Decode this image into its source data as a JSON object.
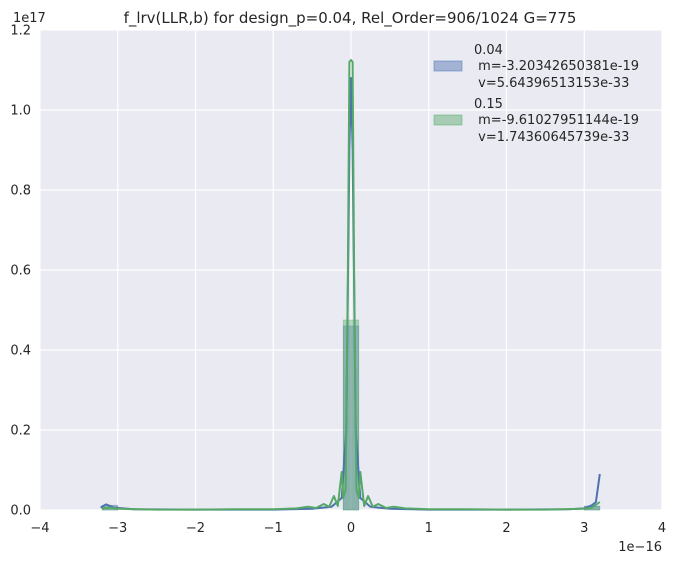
{
  "chart_data": {
    "type": "histogram+line",
    "title": "f_lrv(LLR,b) for design_p=0.04, Rel_Order=906/1024 G=775",
    "x_offset_label": "1e−16",
    "y_offset_label": "1e17",
    "xlim": [
      -4,
      4
    ],
    "ylim": [
      0,
      1.2
    ],
    "x_ticks": [
      -4,
      -3,
      -2,
      -1,
      0,
      1,
      2,
      3,
      4
    ],
    "x_tick_labels": [
      "−4",
      "−3",
      "−2",
      "−1",
      "0",
      "1",
      "2",
      "3",
      "4"
    ],
    "y_ticks": [
      0,
      0.2,
      0.4,
      0.6,
      0.8,
      1.0,
      1.2
    ],
    "y_tick_labels": [
      "0.0",
      "0.2",
      "0.4",
      "0.6",
      "0.8",
      "1.0",
      "1.2"
    ],
    "grid": true,
    "legend_position": "top-right",
    "colors": {
      "blue": "#4c72b0",
      "green": "#55a868",
      "background": "#eaeaf2",
      "grid": "#ffffff"
    },
    "series": [
      {
        "name": "0.04",
        "legend_lines": [
          "0.04",
          " m=-3.20342650381e-19",
          " v=5.64396513153e-33"
        ],
        "color": "#4c72b0",
        "hist": [
          {
            "x0": -3.2,
            "x1": -3.0,
            "y": 0.012
          },
          {
            "x0": -0.1,
            "x1": 0.1,
            "y": 0.46
          },
          {
            "x0": 3.0,
            "x1": 3.2,
            "y": 0.01
          }
        ],
        "line": [
          [
            -3.22,
            0.006
          ],
          [
            -3.15,
            0.014
          ],
          [
            -3.05,
            0.006
          ],
          [
            -2.8,
            0.002
          ],
          [
            -2.0,
            0.001
          ],
          [
            -1.0,
            0.001
          ],
          [
            -0.5,
            0.003
          ],
          [
            -0.25,
            0.008
          ],
          [
            -0.12,
            0.03
          ],
          [
            -0.06,
            0.2
          ],
          [
            -0.02,
            0.9
          ],
          [
            0.0,
            1.08
          ],
          [
            0.02,
            0.9
          ],
          [
            0.06,
            0.2
          ],
          [
            0.12,
            0.03
          ],
          [
            0.25,
            0.008
          ],
          [
            0.5,
            0.003
          ],
          [
            1.0,
            0.001
          ],
          [
            2.0,
            0.001
          ],
          [
            2.8,
            0.002
          ],
          [
            3.0,
            0.004
          ],
          [
            3.1,
            0.012
          ],
          [
            3.15,
            0.02
          ],
          [
            3.2,
            0.09
          ]
        ]
      },
      {
        "name": "0.15",
        "legend_lines": [
          "0.15",
          " m=-9.61027951144e-19",
          " v=1.74360645739e-33"
        ],
        "color": "#55a868",
        "hist": [
          {
            "x0": -3.2,
            "x1": -3.0,
            "y": 0.008
          },
          {
            "x0": -0.1,
            "x1": 0.1,
            "y": 0.475
          },
          {
            "x0": 3.0,
            "x1": 3.2,
            "y": 0.008
          }
        ],
        "line": [
          [
            -3.2,
            0.004
          ],
          [
            -3.1,
            0.006
          ],
          [
            -3.0,
            0.003
          ],
          [
            -2.5,
            0.001
          ],
          [
            -2.0,
            0.001
          ],
          [
            -1.5,
            0.002
          ],
          [
            -1.0,
            0.002
          ],
          [
            -0.7,
            0.004
          ],
          [
            -0.55,
            0.008
          ],
          [
            -0.45,
            0.005
          ],
          [
            -0.35,
            0.015
          ],
          [
            -0.28,
            0.008
          ],
          [
            -0.22,
            0.035
          ],
          [
            -0.17,
            0.01
          ],
          [
            -0.12,
            0.095
          ],
          [
            -0.1,
            0.03
          ],
          [
            -0.07,
            0.05
          ],
          [
            -0.04,
            0.6
          ],
          [
            -0.02,
            1.12
          ],
          [
            0.0,
            1.125
          ],
          [
            0.02,
            1.12
          ],
          [
            0.04,
            0.6
          ],
          [
            0.07,
            0.05
          ],
          [
            0.1,
            0.03
          ],
          [
            0.12,
            0.095
          ],
          [
            0.17,
            0.01
          ],
          [
            0.22,
            0.035
          ],
          [
            0.28,
            0.008
          ],
          [
            0.35,
            0.015
          ],
          [
            0.45,
            0.005
          ],
          [
            0.55,
            0.008
          ],
          [
            0.7,
            0.004
          ],
          [
            1.0,
            0.002
          ],
          [
            1.5,
            0.002
          ],
          [
            2.0,
            0.001
          ],
          [
            2.5,
            0.001
          ],
          [
            3.0,
            0.003
          ],
          [
            3.1,
            0.006
          ],
          [
            3.2,
            0.02
          ]
        ]
      }
    ]
  }
}
